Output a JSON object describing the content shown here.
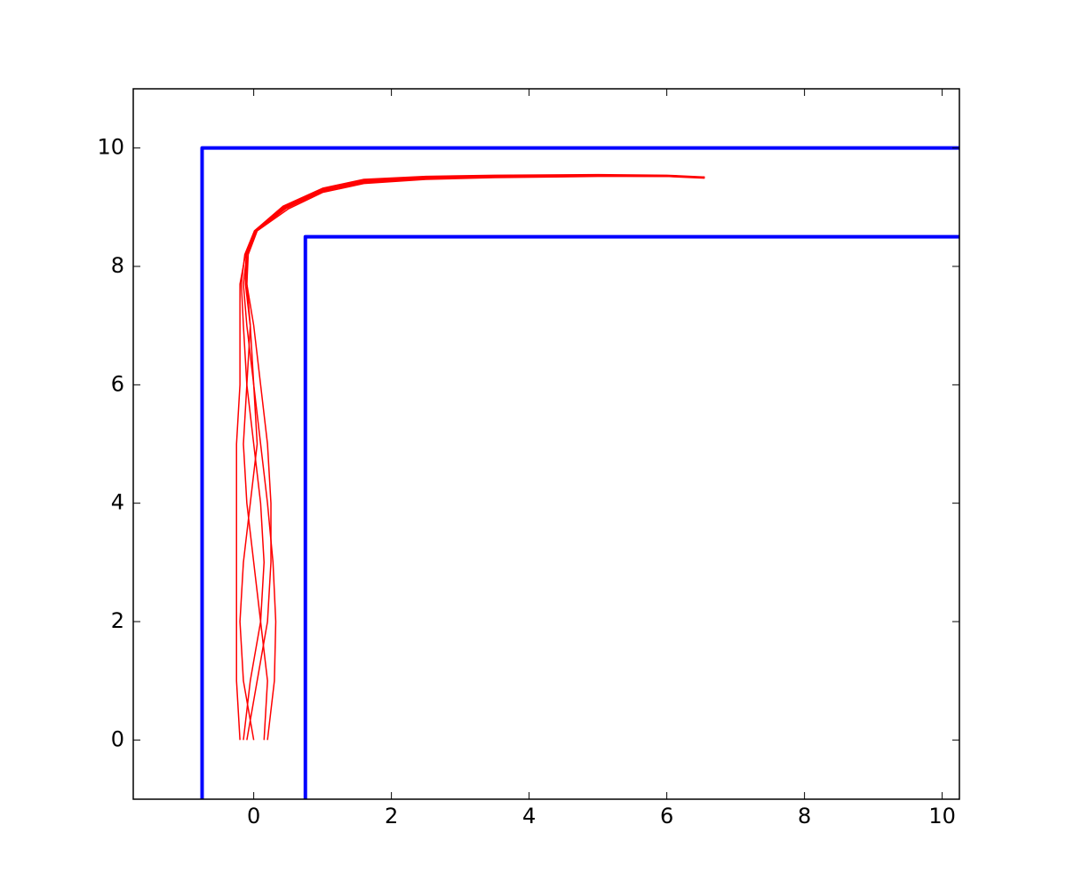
{
  "chart_data": {
    "type": "line",
    "xlim": [
      -1.75,
      10.25
    ],
    "ylim": [
      -1,
      11
    ],
    "xticks": [
      0,
      2,
      4,
      6,
      8,
      10
    ],
    "yticks": [
      0,
      2,
      4,
      6,
      8,
      10
    ],
    "grid": false,
    "series": [
      {
        "color": "#0000ff",
        "width": 4,
        "x": [
          -0.75,
          -0.75,
          10.25
        ],
        "values": [
          -1,
          10,
          10
        ]
      },
      {
        "color": "#0000ff",
        "width": 4,
        "x": [
          0.75,
          0.75,
          10.25
        ],
        "values": [
          -1,
          8.5,
          8.5
        ]
      },
      {
        "color": "#ff0000",
        "width": 1.5,
        "x": [
          -0.2,
          -0.25,
          -0.25,
          -0.25,
          -0.25,
          -0.25,
          -0.2,
          -0.2,
          -0.2,
          -0.12,
          0.02,
          0.45,
          1.0,
          1.6,
          2.5,
          3.5,
          5,
          6,
          6.55
        ],
        "values": [
          0,
          1,
          2,
          3,
          4,
          5,
          6,
          7,
          7.7,
          8.2,
          8.6,
          9.0,
          9.3,
          9.45,
          9.5,
          9.52,
          9.53,
          9.52,
          9.5
        ]
      },
      {
        "color": "#ff0000",
        "width": 1.5,
        "x": [
          0.2,
          0.3,
          0.32,
          0.28,
          0.2,
          0.1,
          0,
          -0.1,
          -0.15,
          -0.1,
          0.04,
          0.47,
          1.0,
          1.6,
          2.5,
          3.5,
          5,
          6,
          6.55
        ],
        "values": [
          0,
          1,
          2,
          3,
          4,
          5,
          6,
          7,
          7.7,
          8.2,
          8.6,
          8.98,
          9.27,
          9.42,
          9.48,
          9.51,
          9.53,
          9.53,
          9.5
        ]
      },
      {
        "color": "#ff0000",
        "width": 1.5,
        "x": [
          -0.1,
          0.05,
          0.2,
          0.25,
          0.25,
          0.2,
          0.1,
          0,
          -0.1,
          -0.08,
          0.05,
          0.5,
          1.0,
          1.6,
          2.5,
          3.5,
          5,
          6,
          6.55
        ],
        "values": [
          0,
          1,
          2,
          3,
          4,
          5,
          6,
          7,
          7.7,
          8.2,
          8.6,
          8.97,
          9.25,
          9.4,
          9.47,
          9.5,
          9.52,
          9.52,
          9.51
        ]
      },
      {
        "color": "#ff0000",
        "width": 1.5,
        "x": [
          0.0,
          -0.15,
          -0.2,
          -0.15,
          -0.05,
          0.05,
          0.0,
          -0.05,
          -0.12,
          -0.11,
          0.02,
          0.44,
          1.0,
          1.6,
          2.5,
          3.5,
          5,
          6,
          6.55
        ],
        "values": [
          0,
          1,
          2,
          3,
          4,
          5,
          6,
          7,
          7.7,
          8.2,
          8.6,
          9.01,
          9.31,
          9.46,
          9.51,
          9.53,
          9.54,
          9.53,
          9.5
        ]
      },
      {
        "color": "#ff0000",
        "width": 1.5,
        "x": [
          0.15,
          0.2,
          0.1,
          0,
          -0.1,
          -0.15,
          -0.1,
          -0.05,
          -0.1,
          -0.1,
          0.03,
          0.46,
          1.0,
          1.6,
          2.5,
          3.5,
          5,
          6,
          6.55
        ],
        "values": [
          0,
          1,
          2,
          3,
          4,
          5,
          6,
          7,
          7.7,
          8.2,
          8.6,
          8.99,
          9.28,
          9.43,
          9.49,
          9.52,
          9.53,
          9.52,
          9.49
        ]
      },
      {
        "color": "#ff0000",
        "width": 1.5,
        "x": [
          -0.15,
          -0.05,
          0.1,
          0.15,
          0.1,
          0.0,
          -0.1,
          -0.15,
          -0.18,
          -0.13,
          0.01,
          0.43,
          1.0,
          1.6,
          2.5,
          3.5,
          5,
          6,
          6.55
        ],
        "values": [
          0,
          1,
          2,
          3,
          4,
          5,
          6,
          7,
          7.7,
          8.2,
          8.6,
          9.02,
          9.32,
          9.47,
          9.52,
          9.54,
          9.55,
          9.54,
          9.51
        ]
      }
    ]
  }
}
